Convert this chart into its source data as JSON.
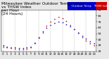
{
  "title": "Milwaukee Weather Outdoor Temperature vs THSW Index per Hour (24 Hours)",
  "title_line1": "Milwaukee Weather Outdoor Temperature",
  "title_line2": "vs THSW Index",
  "title_line3": "per Hour",
  "title_line4": "(24 Hours)",
  "bg_color": "#e8e8e8",
  "plot_bg": "#ffffff",
  "legend_temp_color": "#0000cc",
  "legend_thsw_color": "#cc0000",
  "legend_temp_label": "Outdoor Temp",
  "legend_thsw_label": "THSW Index",
  "ylim": [
    20,
    90
  ],
  "yticks": [
    20,
    30,
    40,
    50,
    60,
    70,
    80,
    90
  ],
  "hours": [
    0,
    1,
    2,
    3,
    4,
    5,
    6,
    7,
    8,
    9,
    10,
    11,
    12,
    13,
    14,
    15,
    16,
    17,
    18,
    19,
    20,
    21,
    22,
    23
  ],
  "temp_values": [
    30,
    28,
    27,
    26,
    25,
    25,
    26,
    28,
    35,
    44,
    52,
    60,
    65,
    68,
    70,
    69,
    66,
    62,
    57,
    52,
    46,
    41,
    37,
    34
  ],
  "thsw_values": [
    28,
    26,
    25,
    24,
    23,
    23,
    24,
    27,
    34,
    43,
    54,
    63,
    70,
    75,
    78,
    76,
    71,
    65,
    58,
    51,
    44,
    38,
    33,
    30
  ],
  "grid_color": "#aaaaaa",
  "grid_linestyle": "--",
  "tick_color": "#000000",
  "title_fontsize": 4.2,
  "tick_fontsize": 3.0,
  "legend_fontsize": 3.0,
  "marker_size": 1.5,
  "x_grid_positions": [
    0,
    3,
    6,
    9,
    12,
    15,
    18,
    21
  ]
}
